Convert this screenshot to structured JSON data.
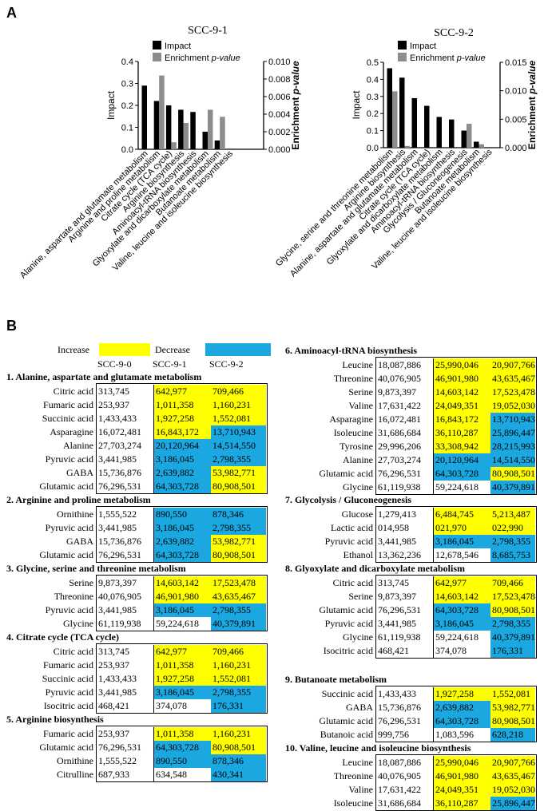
{
  "panels": {
    "a": "A",
    "b": "B"
  },
  "colors": {
    "increase": "#ffff00",
    "decrease": "#1ba7df",
    "impact": "#000000",
    "enrichment": "#8c8c8c"
  },
  "chart_data": [
    {
      "type": "bar",
      "title": "SCC-9-1",
      "legend": [
        "Impact",
        "Enrichment p-value"
      ],
      "legend_placement": "top",
      "ylabel": "Impact",
      "y2label": "Enrichment p-value",
      "ylim": [
        0,
        0.4
      ],
      "y2lim": [
        0,
        0.01
      ],
      "yticks": [
        "0.0",
        "0.1",
        "0.2",
        "0.3",
        "0.4"
      ],
      "y2ticks": [
        "0.000",
        "0.002",
        "0.004",
        "0.006",
        "0.008",
        "0.010"
      ],
      "categories": [
        "Alanine, aspartate and glutamate metabolism",
        "Arginine and proline metabolism",
        "Citrate cycle (TCA cycle)",
        "Arginine biosynthesis",
        "Aminoacyl-tRNA biosynthesis",
        "Glyoxylate and dicarboxylate metabolism",
        "Butanoate metabolism",
        "Valine, leucine and isoleucine biosynthesis"
      ],
      "series": [
        {
          "name": "Impact",
          "axis": "left",
          "values": [
            0.29,
            0.22,
            0.2,
            0.18,
            0.17,
            0.08,
            0.04,
            0.0
          ]
        },
        {
          "name": "Enrichment p-value",
          "axis": "right",
          "values": [
            0.0,
            0.0084,
            0.0008,
            0.003,
            0.0,
            0.0045,
            0.0037,
            0.0
          ]
        }
      ]
    },
    {
      "type": "bar",
      "title": "SCC-9-2",
      "legend": [
        "Impact",
        "Enrichment p-value"
      ],
      "legend_placement": "top",
      "ylabel": "Impact",
      "y2label": "Enrichment p-value",
      "ylim": [
        0,
        0.5
      ],
      "y2lim": [
        0,
        0.015
      ],
      "yticks": [
        "0.0",
        "0.1",
        "0.2",
        "0.3",
        "0.4",
        "0.5"
      ],
      "y2ticks": [
        "0.000",
        "0.005",
        "0.010",
        "0.015"
      ],
      "categories": [
        "Glycine, serine and threonine metabolism",
        "Arginine biosynthesis",
        "Alanine, aspartate and glutamate metabolism",
        "Citrate cycle (TCA cycle)",
        "Glyoxylate and dicarboxylate metabolism",
        "Aminoacyl-tRNA biosynthesis",
        "Glycolysis / Gluconeogenesis",
        "Butanoate metabolism",
        "Valine, leucine and isoleucine biosynthesis"
      ],
      "series": [
        {
          "name": "Impact",
          "axis": "left",
          "values": [
            0.465,
            0.41,
            0.29,
            0.245,
            0.18,
            0.165,
            0.1,
            0.035,
            0.0
          ]
        },
        {
          "name": "Enrichment p-value",
          "axis": "right",
          "values": [
            0.0099,
            0.0003,
            0.0,
            0.0,
            0.0,
            0.0,
            0.0042,
            0.0006,
            0.0
          ]
        }
      ]
    }
  ],
  "table_legend": {
    "increase": "Increase",
    "decrease": "Decrease"
  },
  "columns": [
    "SCC-9-0",
    "SCC-9-1",
    "SCC-9-2"
  ],
  "sections": [
    {
      "title": "1. Alanine, aspartate and glutamate metabolism",
      "rows": [
        {
          "name": "Citric acid",
          "v": [
            "313,745",
            "642,977",
            "709,466"
          ],
          "s": [
            "",
            "inc",
            "inc"
          ]
        },
        {
          "name": "Fumaric acid",
          "v": [
            "253,937",
            "1,011,358",
            "1,160,231"
          ],
          "s": [
            "",
            "inc",
            "inc"
          ]
        },
        {
          "name": "Succinic acid",
          "v": [
            "1,433,433",
            "1,927,258",
            "1,552,081"
          ],
          "s": [
            "",
            "inc",
            "inc"
          ]
        },
        {
          "name": "Asparagine",
          "v": [
            "16,072,481",
            "16,843,172",
            "13,710,943"
          ],
          "s": [
            "",
            "inc",
            "dec"
          ]
        },
        {
          "name": "Alanine",
          "v": [
            "27,703,274",
            "20,120,964",
            "14,514,550"
          ],
          "s": [
            "",
            "dec",
            "dec"
          ]
        },
        {
          "name": "Pyruvic acid",
          "v": [
            "3,441,985",
            "3,186,045",
            "2,798,355"
          ],
          "s": [
            "",
            "dec",
            "dec"
          ]
        },
        {
          "name": "GABA",
          "v": [
            "15,736,876",
            "2,639,882",
            "53,982,771"
          ],
          "s": [
            "",
            "dec",
            "inc"
          ]
        },
        {
          "name": "Glutamic acid",
          "v": [
            "76,296,531",
            "64,303,728",
            "80,908,501"
          ],
          "s": [
            "",
            "dec",
            "inc"
          ]
        }
      ]
    },
    {
      "title": "2. Arginine and proline metabolism",
      "rows": [
        {
          "name": "Ornithine",
          "v": [
            "1,555,522",
            "890,550",
            "878,346"
          ],
          "s": [
            "",
            "dec",
            "dec"
          ]
        },
        {
          "name": "Pyruvic acid",
          "v": [
            "3,441,985",
            "3,186,045",
            "2,798,355"
          ],
          "s": [
            "",
            "dec",
            "dec"
          ]
        },
        {
          "name": "GABA",
          "v": [
            "15,736,876",
            "2,639,882",
            "53,982,771"
          ],
          "s": [
            "",
            "dec",
            "inc"
          ]
        },
        {
          "name": "Glutamic acid",
          "v": [
            "76,296,531",
            "64,303,728",
            "80,908,501"
          ],
          "s": [
            "",
            "dec",
            "inc"
          ]
        }
      ]
    },
    {
      "title": "3. Glycine, serine and threonine metabolism",
      "rows": [
        {
          "name": "Serine",
          "v": [
            "9,873,397",
            "14,603,142",
            "17,523,478"
          ],
          "s": [
            "",
            "inc",
            "inc"
          ]
        },
        {
          "name": "Threonine",
          "v": [
            "40,076,905",
            "46,901,980",
            "43,635,467"
          ],
          "s": [
            "",
            "inc",
            "inc"
          ]
        },
        {
          "name": "Pyruvic acid",
          "v": [
            "3,441,985",
            "3,186,045",
            "2,798,355"
          ],
          "s": [
            "",
            "dec",
            "dec"
          ]
        },
        {
          "name": "Glycine",
          "v": [
            "61,119,938",
            "59,224,618",
            "40,379,891"
          ],
          "s": [
            "",
            "",
            "dec"
          ]
        }
      ]
    },
    {
      "title": "4. Citrate cycle (TCA cycle)",
      "rows": [
        {
          "name": "Citric acid",
          "v": [
            "313,745",
            "642,977",
            "709,466"
          ],
          "s": [
            "",
            "inc",
            "inc"
          ]
        },
        {
          "name": "Fumaric acid",
          "v": [
            "253,937",
            "1,011,358",
            "1,160,231"
          ],
          "s": [
            "",
            "inc",
            "inc"
          ]
        },
        {
          "name": "Succinic acid",
          "v": [
            "1,433,433",
            "1,927,258",
            "1,552,081"
          ],
          "s": [
            "",
            "inc",
            "inc"
          ]
        },
        {
          "name": "Pyruvic acid",
          "v": [
            "3,441,985",
            "3,186,045",
            "2,798,355"
          ],
          "s": [
            "",
            "dec",
            "dec"
          ]
        },
        {
          "name": "Isocitric acid",
          "v": [
            "468,421",
            "374,078",
            "176,331"
          ],
          "s": [
            "",
            "",
            "dec"
          ]
        }
      ]
    },
    {
      "title": "5. Arginine biosynthesis",
      "rows": [
        {
          "name": "Fumaric acid",
          "v": [
            "253,937",
            "1,011,358",
            "1,160,231"
          ],
          "s": [
            "",
            "inc",
            "inc"
          ]
        },
        {
          "name": "Glutamic acid",
          "v": [
            "76,296,531",
            "64,303,728",
            "80,908,501"
          ],
          "s": [
            "",
            "dec",
            "inc"
          ]
        },
        {
          "name": "Ornithine",
          "v": [
            "1,555,522",
            "890,550",
            "878,346"
          ],
          "s": [
            "",
            "dec",
            "dec"
          ]
        },
        {
          "name": "Citrulline",
          "v": [
            "687,933",
            "634,548",
            "430,341"
          ],
          "s": [
            "",
            "",
            "dec"
          ]
        }
      ]
    },
    {
      "title": "6. Aminoacyl-tRNA biosynthesis",
      "rows": [
        {
          "name": "Leucine",
          "v": [
            "18,087,886",
            "25,990,046",
            "20,907,766"
          ],
          "s": [
            "",
            "inc",
            "inc"
          ]
        },
        {
          "name": "Threonine",
          "v": [
            "40,076,905",
            "46,901,980",
            "43,635,467"
          ],
          "s": [
            "",
            "inc",
            "inc"
          ]
        },
        {
          "name": "Serine",
          "v": [
            "9,873,397",
            "14,603,142",
            "17,523,478"
          ],
          "s": [
            "",
            "inc",
            "inc"
          ]
        },
        {
          "name": "Valine",
          "v": [
            "17,631,422",
            "24,049,351",
            "19,052,030"
          ],
          "s": [
            "",
            "inc",
            "inc"
          ]
        },
        {
          "name": "Asparagine",
          "v": [
            "16,072,481",
            "16,843,172",
            "13,710,943"
          ],
          "s": [
            "",
            "inc",
            "dec"
          ]
        },
        {
          "name": "Isoleucine",
          "v": [
            "31,686,684",
            "36,110,287",
            "25,896,447"
          ],
          "s": [
            "",
            "inc",
            "dec"
          ]
        },
        {
          "name": "Tyrosine",
          "v": [
            "29,996,206",
            "33,308,942",
            "28,215,993"
          ],
          "s": [
            "",
            "inc",
            "dec"
          ]
        },
        {
          "name": "Alanine",
          "v": [
            "27,703,274",
            "20,120,964",
            "14,514,550"
          ],
          "s": [
            "",
            "dec",
            "dec"
          ]
        },
        {
          "name": "Glutamic acid",
          "v": [
            "76,296,531",
            "64,303,728",
            "80,908,501"
          ],
          "s": [
            "",
            "dec",
            "inc"
          ]
        },
        {
          "name": "Glycine",
          "v": [
            "61,119,938",
            "59,224,618",
            "40,379,891"
          ],
          "s": [
            "",
            "",
            "dec"
          ]
        }
      ]
    },
    {
      "title": "7. Glycolysis / Gluconeogenesis",
      "rows": [
        {
          "name": "Glucose",
          "v": [
            "1,279,413",
            "6,484,745",
            "5,213,487"
          ],
          "s": [
            "",
            "inc",
            "inc"
          ]
        },
        {
          "name": "Lactic acid",
          "v": [
            "014,958",
            "021,970",
            "022,990"
          ],
          "s": [
            "",
            "inc",
            "inc"
          ]
        },
        {
          "name": "Pyruvic acid",
          "v": [
            "3,441,985",
            "3,186,045",
            "2,798,355"
          ],
          "s": [
            "",
            "dec",
            "dec"
          ]
        },
        {
          "name": "Ethanol",
          "v": [
            "13,362,236",
            "12,678,546",
            "8,685,753"
          ],
          "s": [
            "",
            "",
            "dec"
          ]
        }
      ]
    },
    {
      "title": "8. Glyoxylate and dicarboxylate metabolism",
      "rows": [
        {
          "name": "Citric acid",
          "v": [
            "313,745",
            "642,977",
            "709,466"
          ],
          "s": [
            "",
            "inc",
            "inc"
          ]
        },
        {
          "name": "Serine",
          "v": [
            "9,873,397",
            "14,603,142",
            "17,523,478"
          ],
          "s": [
            "",
            "inc",
            "inc"
          ]
        },
        {
          "name": "Glutamic acid",
          "v": [
            "76,296,531",
            "64,303,728",
            "80,908,501"
          ],
          "s": [
            "",
            "dec",
            "inc"
          ]
        },
        {
          "name": "Pyruvic acid",
          "v": [
            "3,441,985",
            "3,186,045",
            "2,798,355"
          ],
          "s": [
            "",
            "dec",
            "dec"
          ]
        },
        {
          "name": "Glycine",
          "v": [
            "61,119,938",
            "59,224,618",
            "40,379,891"
          ],
          "s": [
            "",
            "",
            "dec"
          ]
        },
        {
          "name": "Isocitric acid",
          "v": [
            "468,421",
            "374,078",
            "176,331"
          ],
          "s": [
            "",
            "",
            "dec"
          ]
        }
      ]
    },
    {
      "title": "9. Butanoate metabolism",
      "rows": [
        {
          "name": "Succinic acid",
          "v": [
            "1,433,433",
            "1,927,258",
            "1,552,081"
          ],
          "s": [
            "",
            "inc",
            "inc"
          ]
        },
        {
          "name": "GABA",
          "v": [
            "15,736,876",
            "2,639,882",
            "53,982,771"
          ],
          "s": [
            "",
            "dec",
            "inc"
          ]
        },
        {
          "name": "Glutamic acid",
          "v": [
            "76,296,531",
            "64,303,728",
            "80,908,501"
          ],
          "s": [
            "",
            "dec",
            "inc"
          ]
        },
        {
          "name": "Butanoic acid",
          "v": [
            "999,756",
            "1,083,596",
            "628,218"
          ],
          "s": [
            "",
            "",
            "dec"
          ]
        }
      ]
    },
    {
      "title": "10. Valine, leucine and isoleucine biosynthesis",
      "rows": [
        {
          "name": "Leucine",
          "v": [
            "18,087,886",
            "25,990,046",
            "20,907,766"
          ],
          "s": [
            "",
            "inc",
            "inc"
          ]
        },
        {
          "name": "Threonine",
          "v": [
            "40,076,905",
            "46,901,980",
            "43,635,467"
          ],
          "s": [
            "",
            "inc",
            "inc"
          ]
        },
        {
          "name": "Valine",
          "v": [
            "17,631,422",
            "24,049,351",
            "19,052,030"
          ],
          "s": [
            "",
            "inc",
            "inc"
          ]
        },
        {
          "name": "Isoleucine",
          "v": [
            "31,686,684",
            "36,110,287",
            "25,896,447"
          ],
          "s": [
            "",
            "inc",
            "dec"
          ]
        }
      ]
    }
  ]
}
